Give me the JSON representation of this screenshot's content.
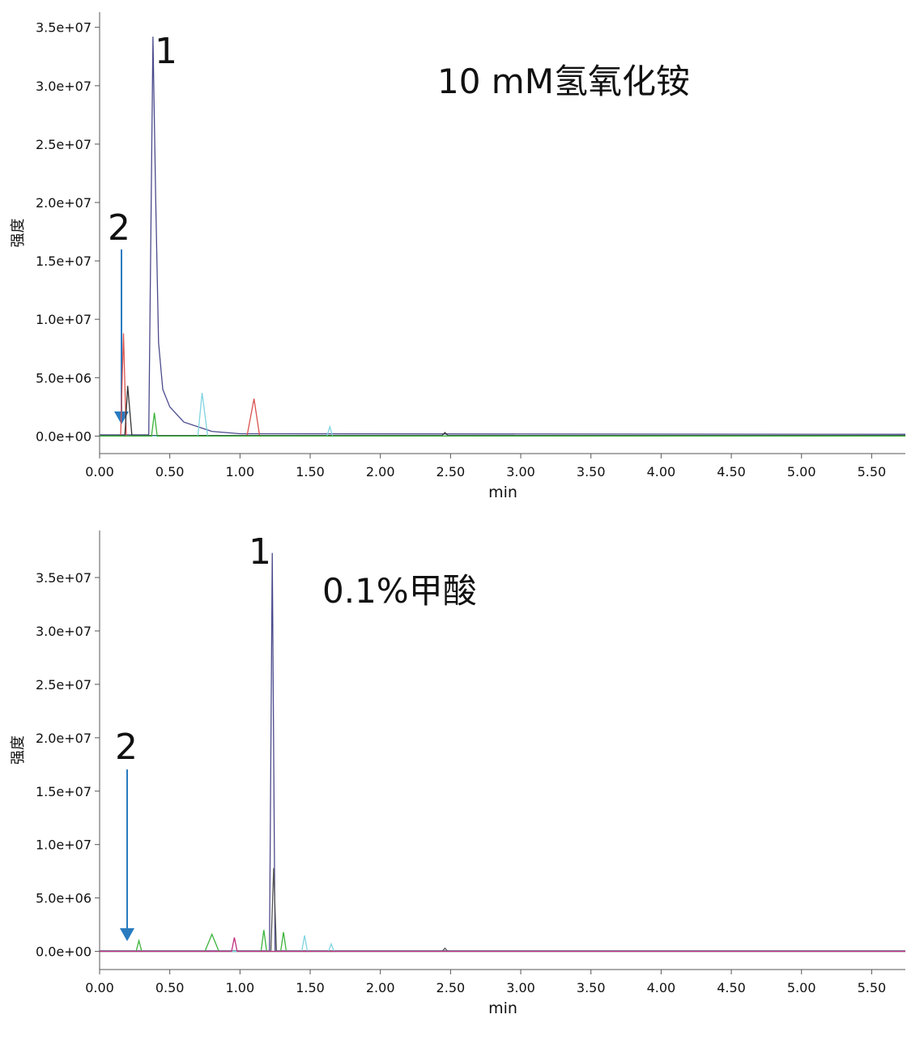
{
  "chart_data": [
    {
      "type": "line",
      "title": "10 mM氢氧化铵",
      "x_label": "min",
      "y_label": "强度",
      "peak_labels": [
        "1",
        "2"
      ],
      "xlim": [
        0,
        5.74
      ],
      "ylim": [
        -1500000,
        36300000
      ],
      "xticks": [
        {
          "value": 0,
          "label": "0.00"
        },
        {
          "value": 0.5,
          "label": "0.50"
        },
        {
          "value": 1,
          "label": "1.00"
        },
        {
          "value": 1.5,
          "label": "1.50"
        },
        {
          "value": 2,
          "label": "2.00"
        },
        {
          "value": 2.5,
          "label": "2.50"
        },
        {
          "value": 3,
          "label": "3.00"
        },
        {
          "value": 3.5,
          "label": "3.50"
        },
        {
          "value": 4,
          "label": "4.00"
        },
        {
          "value": 4.5,
          "label": "4.50"
        },
        {
          "value": 5,
          "label": "5.00"
        },
        {
          "value": 5.5,
          "label": "5.50"
        }
      ],
      "yticks": [
        {
          "value": 0,
          "label": "0.0e+00"
        },
        {
          "value": 5000000,
          "label": "5.0e+06"
        },
        {
          "value": 10000000,
          "label": "1.0e+07"
        },
        {
          "value": 15000000,
          "label": "1.5e+07"
        },
        {
          "value": 20000000,
          "label": "2.0e+07"
        },
        {
          "value": 25000000,
          "label": "2.5e+07"
        },
        {
          "value": 30000000,
          "label": "3.0e+07"
        },
        {
          "value": 35000000,
          "label": "3.5e+07"
        }
      ],
      "series": [
        {
          "color": "#4a4a8c",
          "x": [
            0,
            0.35,
            0.38,
            0.4,
            0.42,
            0.45,
            0.5,
            0.6,
            0.8,
            1.0,
            5.74
          ],
          "values": [
            100000,
            100000,
            34200000,
            20000000,
            8000000,
            4000000,
            2500000,
            1200000,
            400000,
            200000,
            150000
          ]
        },
        {
          "color": "#d9534f",
          "x": [
            0,
            0.15,
            0.17,
            0.19,
            1.05,
            1.1,
            1.14,
            5.74
          ],
          "values": [
            0,
            0,
            8800000,
            0,
            0,
            3200000,
            0,
            0
          ]
        },
        {
          "color": "#333333",
          "x": [
            0,
            0.18,
            0.2,
            0.23,
            2.44,
            2.46,
            2.48,
            5.74
          ],
          "values": [
            50000,
            50000,
            4300000,
            50000,
            50000,
            300000,
            50000,
            50000
          ]
        },
        {
          "color": "#7fd3e0",
          "x": [
            0,
            0.7,
            0.73,
            0.77,
            1.62,
            1.64,
            1.66,
            5.74
          ],
          "values": [
            0,
            0,
            3700000,
            0,
            0,
            800000,
            0,
            0
          ]
        },
        {
          "color": "#3bb33b",
          "x": [
            0,
            0.37,
            0.39,
            0.41,
            5.74
          ],
          "values": [
            0,
            0,
            2000000,
            0,
            0
          ]
        }
      ]
    },
    {
      "type": "line",
      "title": "0.1%甲酸",
      "x_label": "min",
      "y_label": "强度",
      "peak_labels": [
        "1",
        "2"
      ],
      "xlim": [
        0,
        5.74
      ],
      "ylim": [
        -1700000,
        39400000
      ],
      "xticks": [
        {
          "value": 0,
          "label": "0.00"
        },
        {
          "value": 0.5,
          "label": "0.50"
        },
        {
          "value": 1,
          "label": "1.00"
        },
        {
          "value": 1.5,
          "label": "1.50"
        },
        {
          "value": 2,
          "label": "2.00"
        },
        {
          "value": 2.5,
          "label": "2.50"
        },
        {
          "value": 3,
          "label": "3.00"
        },
        {
          "value": 3.5,
          "label": "3.50"
        },
        {
          "value": 4,
          "label": "4.00"
        },
        {
          "value": 4.5,
          "label": "4.50"
        },
        {
          "value": 5,
          "label": "5.00"
        },
        {
          "value": 5.5,
          "label": "5.50"
        }
      ],
      "yticks": [
        {
          "value": 0,
          "label": "0.0e+00"
        },
        {
          "value": 5000000,
          "label": "5.0e+06"
        },
        {
          "value": 10000000,
          "label": "1.0e+07"
        },
        {
          "value": 15000000,
          "label": "1.5e+07"
        },
        {
          "value": 20000000,
          "label": "2.0e+07"
        },
        {
          "value": 25000000,
          "label": "2.5e+07"
        },
        {
          "value": 30000000,
          "label": "3.0e+07"
        },
        {
          "value": 35000000,
          "label": "3.5e+07"
        }
      ],
      "series": [
        {
          "color": "#4a4a8c",
          "x": [
            0,
            1.21,
            1.23,
            1.25,
            5.74
          ],
          "values": [
            50000,
            50000,
            37300000,
            50000,
            50000
          ]
        },
        {
          "color": "#555555",
          "x": [
            0,
            1.22,
            1.24,
            1.26,
            2.44,
            2.46,
            2.48,
            5.74
          ],
          "values": [
            0,
            0,
            7800000,
            0,
            0,
            300000,
            0,
            0
          ]
        },
        {
          "color": "#3bb33b",
          "x": [
            0,
            0.26,
            0.28,
            0.3,
            0.75,
            0.8,
            0.85,
            1.15,
            1.17,
            1.19,
            1.29,
            1.31,
            1.33,
            5.74
          ],
          "values": [
            0,
            0,
            1000000,
            0,
            0,
            1600000,
            0,
            0,
            2000000,
            0,
            0,
            1800000,
            0,
            0
          ]
        },
        {
          "color": "#7fd3e0",
          "x": [
            0,
            1.44,
            1.46,
            1.48,
            1.63,
            1.65,
            1.67,
            5.74
          ],
          "values": [
            0,
            0,
            1500000,
            0,
            0,
            700000,
            0,
            0
          ]
        },
        {
          "color": "#c03080",
          "x": [
            0,
            0.94,
            0.96,
            0.98,
            5.74
          ],
          "values": [
            0,
            0,
            1300000,
            0,
            0
          ]
        }
      ]
    }
  ]
}
